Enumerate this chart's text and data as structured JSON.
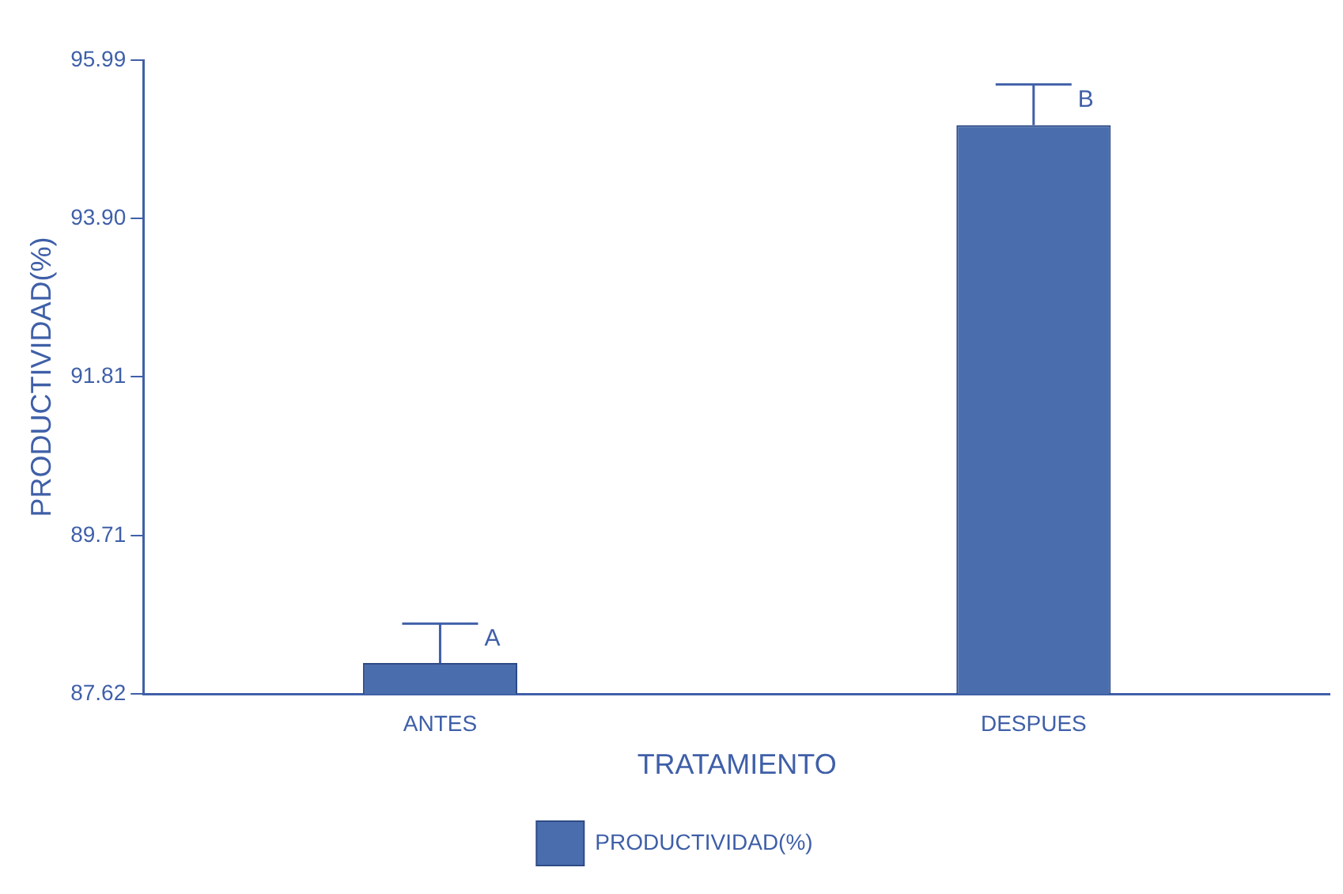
{
  "chart_data": {
    "type": "bar",
    "xlabel": "TRATAMIENTO",
    "ylabel": "PRODUCTIVIDAD(%)",
    "categories": [
      "ANTES",
      "DESPUES"
    ],
    "series": [
      {
        "name": "PRODUCTIVIDAD(%)",
        "color": "#4a6ead",
        "values": [
          88.03,
          95.13
        ],
        "errors": [
          [
            88.03,
            88.55
          ],
          [
            95.13,
            95.67
          ]
        ]
      }
    ],
    "ylim": [
      87.62,
      95.99
    ],
    "yticks": [
      87.62,
      89.71,
      91.81,
      {
        "value": 93.9,
        "label": "93.90"
      },
      95.99
    ],
    "annotations": [
      "A",
      "B"
    ],
    "grid": false,
    "legend": "bottom"
  }
}
